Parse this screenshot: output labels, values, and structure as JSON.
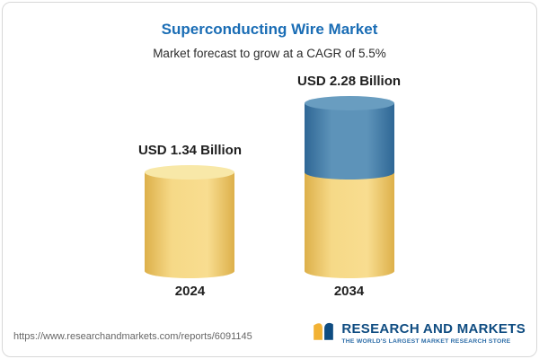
{
  "card": {
    "title": "Superconducting Wire Market",
    "subtitle": "Market forecast to grow at a CAGR of 5.5%"
  },
  "chart_data": {
    "type": "bar",
    "title": "Superconducting Wire Market",
    "subtitle": "Market forecast to grow at a CAGR of 5.5%",
    "cagr_percent": 5.5,
    "unit": "USD Billion",
    "categories": [
      "2024",
      "2034"
    ],
    "values": [
      1.34,
      2.28
    ],
    "value_labels": [
      "USD 1.34 Billion",
      "USD 2.28 Billion"
    ],
    "legend_position": "none",
    "grid": false,
    "colors": {
      "base_segment": "#f0d078",
      "growth_segment": "#4d86ad",
      "title_accent": "#1a6db5"
    }
  },
  "footer": {
    "url": "https://www.researchandmarkets.com/reports/6091145",
    "logo_text": "RESEARCH AND MARKETS",
    "logo_tagline": "THE WORLD'S LARGEST MARKET RESEARCH STORE"
  }
}
